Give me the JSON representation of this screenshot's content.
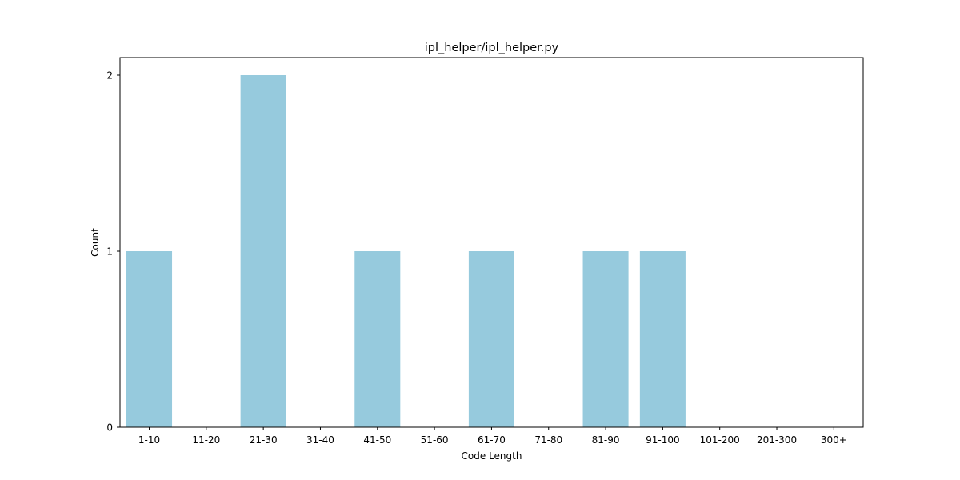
{
  "chart_data": {
    "type": "bar",
    "title": "ipl_helper/ipl_helper.py",
    "xlabel": "Code Length",
    "ylabel": "Count",
    "categories": [
      "1-10",
      "11-20",
      "21-30",
      "31-40",
      "41-50",
      "51-60",
      "61-70",
      "71-80",
      "81-90",
      "91-100",
      "101-200",
      "201-300",
      "300+"
    ],
    "values": [
      1,
      0,
      2,
      0,
      1,
      0,
      1,
      0,
      1,
      1,
      0,
      0,
      0
    ],
    "ylim": [
      0,
      2.1
    ],
    "yticks": [
      0,
      1,
      2
    ],
    "grid": false,
    "legend": "none",
    "bar_color": "#96cadd"
  }
}
